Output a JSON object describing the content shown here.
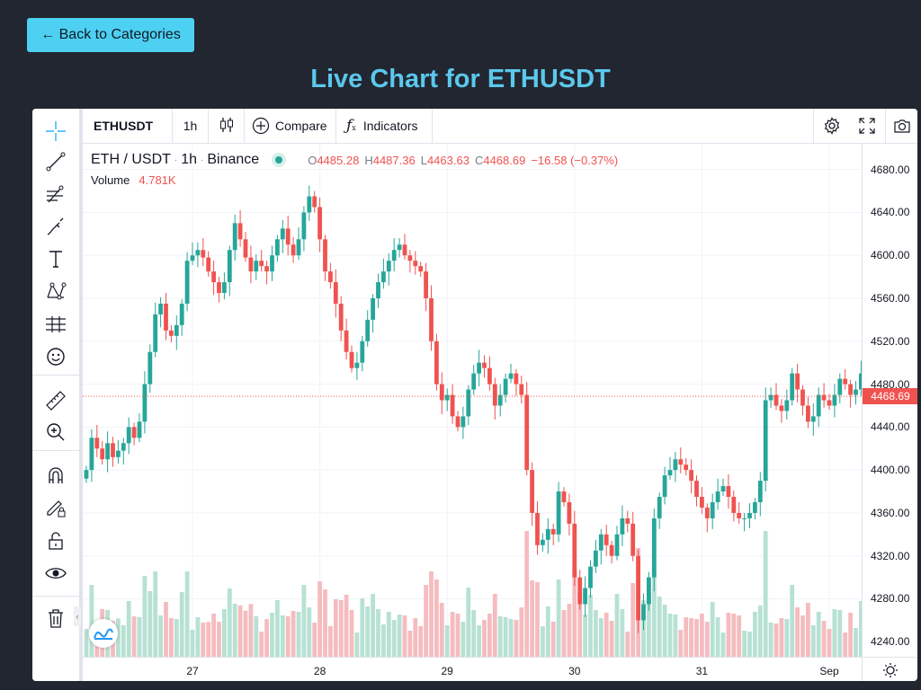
{
  "header": {
    "back_label": "← Back to Categories",
    "title": "Live Chart for ETHUSDT"
  },
  "toolbar": {
    "symbol": "ETHUSDT",
    "interval": "1h",
    "compare_label": "Compare",
    "indicators_label": "Indicators"
  },
  "left_tools": [
    "crosshair-icon",
    "trend-line-icon",
    "fib-tools-icon",
    "brush-icon",
    "text-icon",
    "patterns-icon",
    "prediction-icon",
    "emoji-icon",
    "ruler-icon",
    "zoom-in-icon",
    "magnet-icon",
    "lock-drawing-icon",
    "unlock-icon",
    "eye-icon",
    "trash-icon"
  ],
  "legend": {
    "pair": "ETH / USDT",
    "interval": "1h",
    "exchange": "Binance",
    "open_label": "O",
    "open": "4485.28",
    "high_label": "H",
    "high": "4487.36",
    "low_label": "L",
    "low": "4463.63",
    "close_label": "C",
    "close": "4468.69",
    "change": "−16.58 (−0.37%)",
    "volume_label": "Volume",
    "volume": "4.781K"
  },
  "colors": {
    "up": "#26a69a",
    "down": "#ef5350",
    "up_volume": "#b7e1d3",
    "down_volume": "#f5bcc0",
    "accent": "#4dd0f2"
  },
  "chart_data": {
    "type": "candlestick",
    "symbol": "ETH / USDT",
    "interval": "1h",
    "price_ticks": [
      "4680.00",
      "4640.00",
      "4600.00",
      "4560.00",
      "4520.00",
      "4480.00",
      "4440.00",
      "4400.00",
      "4360.00",
      "4320.00",
      "4280.00",
      "4240.00"
    ],
    "price_range": [
      4226,
      4704
    ],
    "last_price": "4468.69",
    "time_ticks": [
      "27",
      "28",
      "29",
      "30",
      "31",
      "Sep"
    ],
    "close_series": [
      4400,
      4430,
      4420,
      4410,
      4425,
      4412,
      4418,
      4425,
      4440,
      4430,
      4445,
      4480,
      4510,
      4545,
      4555,
      4530,
      4525,
      4535,
      4555,
      4595,
      4600,
      4605,
      4598,
      4585,
      4575,
      4565,
      4575,
      4605,
      4630,
      4615,
      4598,
      4585,
      4595,
      4590,
      4585,
      4600,
      4615,
      4625,
      4610,
      4600,
      4615,
      4640,
      4655,
      4645,
      4615,
      4585,
      4575,
      4555,
      4530,
      4510,
      4495,
      4500,
      4520,
      4540,
      4560,
      4575,
      4585,
      4595,
      4605,
      4610,
      4600,
      4595,
      4590,
      4585,
      4560,
      4520,
      4480,
      4465,
      4470,
      4450,
      4440,
      4450,
      4475,
      4490,
      4500,
      4495,
      4480,
      4460,
      4470,
      4485,
      4490,
      4480,
      4470,
      4400,
      4360,
      4330,
      4335,
      4345,
      4340,
      4380,
      4370,
      4350,
      4300,
      4275,
      4290,
      4310,
      4325,
      4340,
      4330,
      4320,
      4340,
      4355,
      4350,
      4320,
      4260,
      4275,
      4300,
      4355,
      4375,
      4395,
      4400,
      4410,
      4405,
      4400,
      4390,
      4375,
      4365,
      4355,
      4370,
      4380,
      4385,
      4375,
      4360,
      4355,
      4355,
      4360,
      4370,
      4390,
      4465,
      4470,
      4460,
      4455,
      4465,
      4490,
      4475,
      4460,
      4445,
      4450,
      4470,
      4465,
      4460,
      4470,
      4485,
      4480,
      4470,
      4475,
      4490,
      4480,
      4470
    ]
  }
}
